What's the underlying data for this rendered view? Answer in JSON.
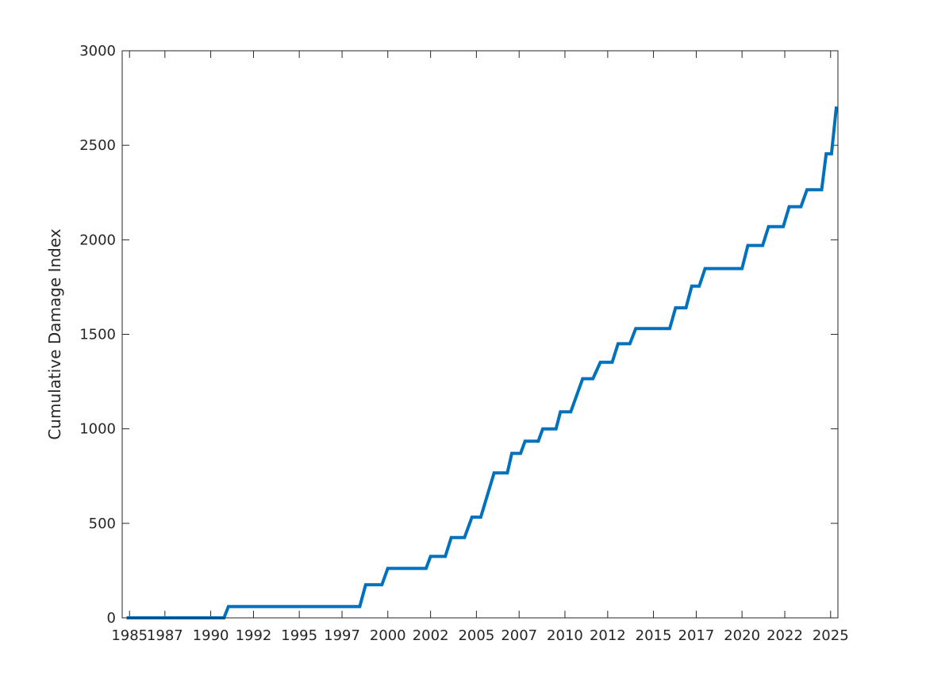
{
  "chart_data": {
    "type": "line",
    "title": "",
    "xlabel": "",
    "ylabel": "Cumulative Damage Index",
    "xlim": [
      "1985-01-01",
      "2025-06-01"
    ],
    "ylim": [
      0,
      3000
    ],
    "grid": false,
    "line_color": "#0072BD",
    "xticks": [
      {
        "date": "1985-06-01",
        "label": "1985"
      },
      {
        "date": "1987-06-01",
        "label": "1987"
      },
      {
        "date": "1990-01-01",
        "label": "1990"
      },
      {
        "date": "1992-06-01",
        "label": "1992"
      },
      {
        "date": "1995-01-01",
        "label": "1995"
      },
      {
        "date": "1997-06-01",
        "label": "1997"
      },
      {
        "date": "2000-01-01",
        "label": "2000"
      },
      {
        "date": "2002-06-01",
        "label": "2002"
      },
      {
        "date": "2005-01-01",
        "label": "2005"
      },
      {
        "date": "2007-06-01",
        "label": "2007"
      },
      {
        "date": "2010-01-01",
        "label": "2010"
      },
      {
        "date": "2012-06-01",
        "label": "2012"
      },
      {
        "date": "2015-01-01",
        "label": "2015"
      },
      {
        "date": "2017-06-01",
        "label": "2017"
      },
      {
        "date": "2020-01-01",
        "label": "2020"
      },
      {
        "date": "2022-06-01",
        "label": "2022"
      },
      {
        "date": "2025-01-01",
        "label": "2025"
      }
    ],
    "yticks": [
      0,
      500,
      1000,
      1500,
      2000,
      2500,
      3000
    ],
    "yticklabels": [
      "0",
      "500",
      "1000",
      "1500",
      "2000",
      "2500",
      "3000"
    ],
    "series": [
      {
        "x": [
          "1985-04-01",
          "1990-10-01",
          "1991-01-01",
          "1998-06-01",
          "1998-10-01",
          "1999-09-01",
          "2000-01-01",
          "2002-03-01",
          "2002-06-01",
          "2003-04-01",
          "2003-08-01",
          "2004-05-01",
          "2004-10-01",
          "2005-04-01",
          "2006-01-01",
          "2006-10-01",
          "2007-01-01",
          "2007-07-01",
          "2007-10-01",
          "2008-07-01",
          "2008-10-01",
          "2009-07-01",
          "2009-10-01",
          "2010-05-01",
          "2011-01-01",
          "2011-08-01",
          "2012-01-01",
          "2012-09-01",
          "2013-01-01",
          "2013-09-01",
          "2014-01-01",
          "2015-12-01",
          "2016-04-01",
          "2016-11-01",
          "2017-03-01",
          "2017-08-01",
          "2017-12-01",
          "2020-01-01",
          "2020-05-01",
          "2021-03-01",
          "2021-07-01",
          "2022-05-01",
          "2022-09-01",
          "2023-05-01",
          "2023-09-01",
          "2024-07-01",
          "2024-10-01",
          "2025-01-20",
          "2025-05-01"
        ],
        "y": [
          0,
          0,
          60,
          60,
          175,
          175,
          262,
          262,
          325,
          325,
          425,
          425,
          533,
          533,
          767,
          767,
          870,
          870,
          935,
          935,
          1000,
          1000,
          1090,
          1090,
          1265,
          1265,
          1352,
          1352,
          1450,
          1450,
          1530,
          1530,
          1640,
          1640,
          1755,
          1755,
          1848,
          1848,
          1970,
          1970,
          2070,
          2070,
          2175,
          2175,
          2265,
          2265,
          2455,
          2455,
          2705
        ]
      }
    ]
  }
}
